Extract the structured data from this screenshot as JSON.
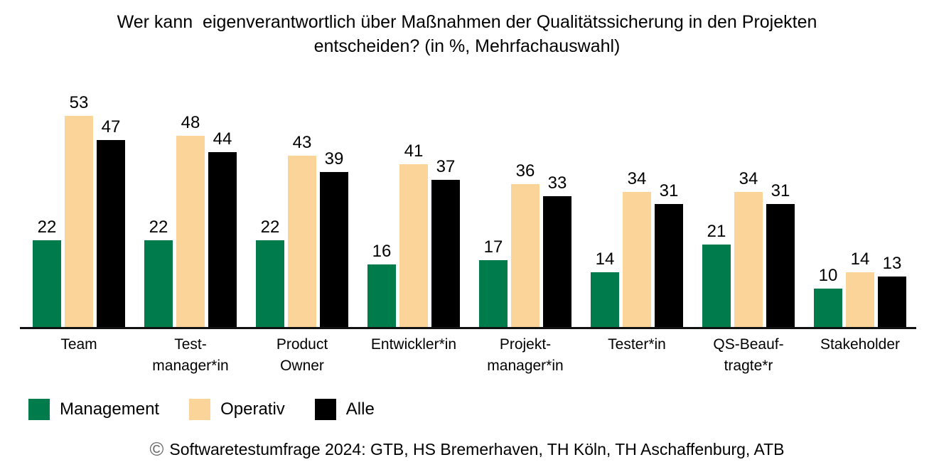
{
  "title": {
    "line1": "Wer kann  eigenverantwortlich über Maßnahmen der Qualitätssicherung in den Projekten",
    "line2": "entscheiden? (in %, Mehrfachauswahl)"
  },
  "chart_data": {
    "type": "bar",
    "categories": [
      "Team",
      "Test-\nmanager*in",
      "Product\nOwner",
      "Entwickler*in",
      "Projekt-\nmanager*in",
      "Tester*in",
      "QS-Beauf-\ntragte*r",
      "Stakeholder"
    ],
    "series": [
      {
        "name": "Management",
        "color": "#007B4B",
        "values": [
          22,
          22,
          22,
          16,
          17,
          14,
          21,
          10
        ]
      },
      {
        "name": "Operativ",
        "color": "#FBD49A",
        "values": [
          53,
          48,
          43,
          41,
          36,
          34,
          34,
          14
        ]
      },
      {
        "name": "Alle",
        "color": "#000000",
        "values": [
          47,
          44,
          39,
          37,
          33,
          31,
          31,
          13
        ]
      }
    ],
    "title": "Wer kann  eigenverantwortlich über Maßnahmen der Qualitätssicherung in den Projekten entscheiden? (in %, Mehrfachauswahl)",
    "xlabel": "",
    "ylabel": "",
    "ylim": [
      0,
      56
    ],
    "grid": false,
    "value_labels": true,
    "legend_position": "bottom"
  },
  "legend": {
    "items": [
      {
        "label": "Management",
        "color": "#007B4B"
      },
      {
        "label": "Operativ",
        "color": "#FBD49A"
      },
      {
        "label": "Alle",
        "color": "#000000"
      }
    ]
  },
  "footer": {
    "copyright_symbol": "©",
    "text": "Softwaretestumfrage 2024: GTB, HS Bremerhaven, TH Köln, TH Aschaffenburg, ATB"
  }
}
